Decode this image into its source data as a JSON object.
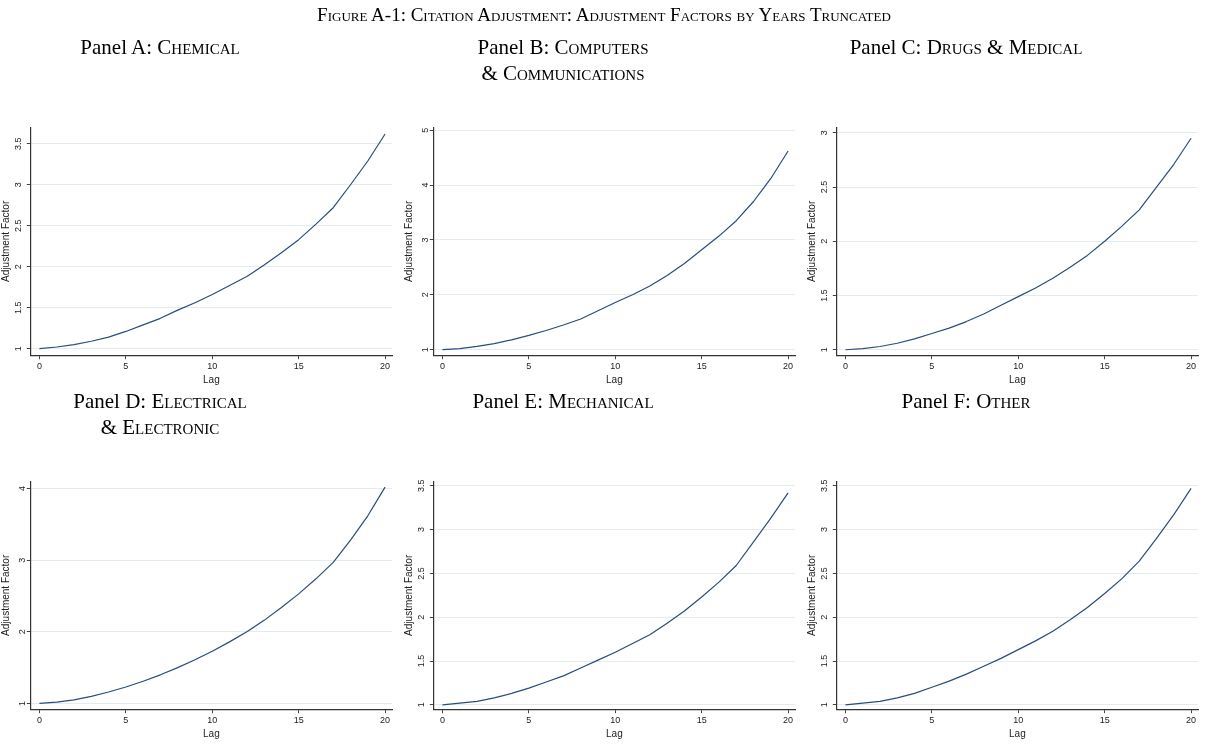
{
  "chart_data": [
    {
      "type": "line",
      "title": "Panel A: Chemical",
      "annotations": [
        "Figure A-1: Citation Adjustment: Adjustment Factors by Years Truncated"
      ],
      "xlabel": "Lag",
      "ylabel": "Adjustment Factor",
      "grid": "y",
      "color": "#2a4d7a",
      "xlim": [
        -0.5,
        20.4
      ],
      "xticks": [
        0,
        5,
        10,
        15,
        20
      ],
      "ylim": [
        0.92,
        3.7
      ],
      "yticks": [
        1,
        1.5,
        2,
        2.5,
        3,
        3.5
      ],
      "x": [
        0,
        1,
        2,
        3,
        4,
        5,
        6,
        7,
        8,
        9,
        10,
        11,
        12,
        13,
        14,
        15,
        16,
        17,
        18,
        19,
        20
      ],
      "values": [
        1,
        1.02,
        1.05,
        1.09,
        1.14,
        1.21,
        1.29,
        1.37,
        1.47,
        1.56,
        1.66,
        1.77,
        1.88,
        2.02,
        2.17,
        2.33,
        2.52,
        2.72,
        3.0,
        3.29,
        3.62
      ]
    },
    {
      "type": "line",
      "title": "Panel B: Computers & Communications",
      "xlabel": "Lag",
      "ylabel": "Adjustment Factor",
      "grid": "y",
      "color": "#2a4d7a",
      "xlim": [
        -0.5,
        20.4
      ],
      "xticks": [
        0,
        5,
        10,
        15,
        20
      ],
      "ylim": [
        0.9,
        5.05
      ],
      "yticks": [
        1,
        2,
        3,
        4,
        5
      ],
      "x": [
        0,
        1,
        2,
        3,
        4,
        5,
        6,
        7,
        8,
        9,
        10,
        11,
        12,
        13,
        14,
        15,
        16,
        17,
        18,
        19,
        20
      ],
      "values": [
        1,
        1.02,
        1.06,
        1.11,
        1.18,
        1.26,
        1.35,
        1.45,
        1.56,
        1.71,
        1.86,
        2.0,
        2.16,
        2.35,
        2.57,
        2.82,
        3.07,
        3.35,
        3.7,
        4.12,
        4.62
      ]
    },
    {
      "type": "line",
      "title": "Panel C: Drugs & Medical",
      "xlabel": "Lag",
      "ylabel": "Adjustment Factor",
      "grid": "y",
      "color": "#2a4d7a",
      "xlim": [
        -0.5,
        20.4
      ],
      "xticks": [
        0,
        5,
        10,
        15,
        20
      ],
      "ylim": [
        0.95,
        3.05
      ],
      "yticks": [
        1,
        1.5,
        2,
        2.5,
        3
      ],
      "x": [
        0,
        1,
        2,
        3,
        4,
        5,
        6,
        7,
        8,
        9,
        10,
        11,
        12,
        13,
        14,
        15,
        16,
        17,
        18,
        19,
        20
      ],
      "values": [
        1,
        1.01,
        1.03,
        1.06,
        1.1,
        1.15,
        1.2,
        1.26,
        1.33,
        1.41,
        1.49,
        1.57,
        1.66,
        1.76,
        1.87,
        2.0,
        2.14,
        2.29,
        2.5,
        2.71,
        2.95
      ]
    },
    {
      "type": "line",
      "title": "Panel D: Electrical & Electronic",
      "xlabel": "Lag",
      "ylabel": "Adjustment Factor",
      "grid": "y",
      "color": "#2a4d7a",
      "xlim": [
        -0.5,
        20.4
      ],
      "xticks": [
        0,
        5,
        10,
        15,
        20
      ],
      "ylim": [
        0.92,
        4.1
      ],
      "yticks": [
        1,
        2,
        3,
        4
      ],
      "x": [
        0,
        1,
        2,
        3,
        4,
        5,
        6,
        7,
        8,
        9,
        10,
        11,
        12,
        13,
        14,
        15,
        16,
        17,
        18,
        19,
        20
      ],
      "values": [
        1,
        1.02,
        1.05,
        1.1,
        1.16,
        1.23,
        1.31,
        1.4,
        1.5,
        1.61,
        1.73,
        1.86,
        2.0,
        2.16,
        2.34,
        2.53,
        2.74,
        2.97,
        3.28,
        3.62,
        4.02
      ]
    },
    {
      "type": "line",
      "title": "Panel E: Mechanical",
      "xlabel": "Lag",
      "ylabel": "Adjustment Factor",
      "grid": "y",
      "color": "#2a4d7a",
      "xlim": [
        -0.5,
        20.4
      ],
      "xticks": [
        0,
        5,
        10,
        15,
        20
      ],
      "ylim": [
        0.95,
        3.55
      ],
      "yticks": [
        1,
        1.5,
        2,
        2.5,
        3,
        3.5
      ],
      "x": [
        0,
        1,
        2,
        3,
        4,
        5,
        6,
        7,
        8,
        9,
        10,
        11,
        12,
        13,
        14,
        15,
        16,
        17,
        18,
        19,
        20
      ],
      "values": [
        1,
        1.02,
        1.04,
        1.08,
        1.13,
        1.19,
        1.26,
        1.33,
        1.42,
        1.51,
        1.6,
        1.7,
        1.8,
        1.93,
        2.07,
        2.23,
        2.4,
        2.59,
        2.86,
        3.13,
        3.42
      ]
    },
    {
      "type": "line",
      "title": "Panel F: Other",
      "xlabel": "Lag",
      "ylabel": "Adjustment Factor",
      "grid": "y",
      "color": "#2a4d7a",
      "xlim": [
        -0.5,
        20.4
      ],
      "xticks": [
        0,
        5,
        10,
        15,
        20
      ],
      "ylim": [
        0.95,
        3.55
      ],
      "yticks": [
        1,
        1.5,
        2,
        2.5,
        3,
        3.5
      ],
      "x": [
        0,
        1,
        2,
        3,
        4,
        5,
        6,
        7,
        8,
        9,
        10,
        11,
        12,
        13,
        14,
        15,
        16,
        17,
        18,
        19,
        20
      ],
      "values": [
        1,
        1.02,
        1.04,
        1.08,
        1.13,
        1.2,
        1.27,
        1.35,
        1.44,
        1.53,
        1.63,
        1.73,
        1.84,
        1.97,
        2.11,
        2.27,
        2.44,
        2.64,
        2.9,
        3.17,
        3.47
      ]
    }
  ]
}
